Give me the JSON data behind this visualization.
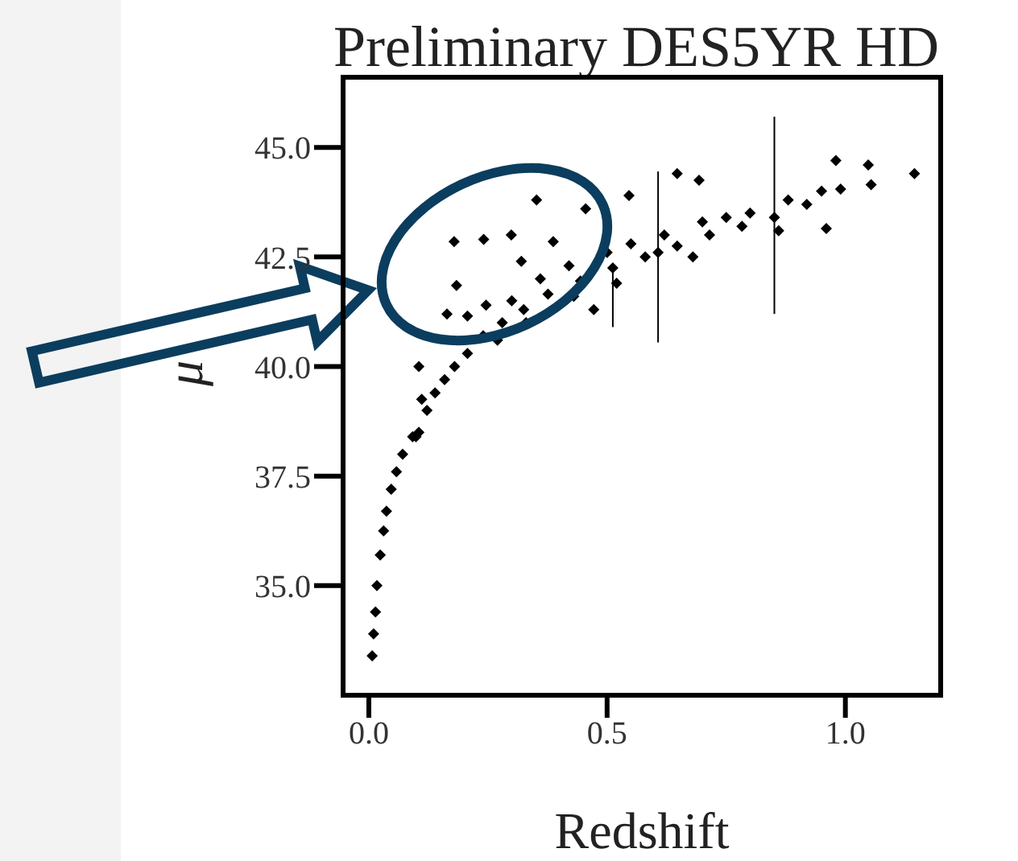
{
  "chart_data": {
    "type": "scatter",
    "title": "Preliminary DES5YR HD",
    "xlabel": "Redshift",
    "ylabel": "μ",
    "xlim": [
      -0.054,
      1.2
    ],
    "ylim": [
      32.5,
      46.6
    ],
    "xticks": [
      {
        "value": 0,
        "label": "0.0"
      },
      {
        "value": 0.5,
        "label": "0.5"
      },
      {
        "value": 1,
        "label": "1.0"
      }
    ],
    "yticks": [
      {
        "value": 35,
        "label": "35.0"
      },
      {
        "value": 37.5,
        "label": "37.5"
      },
      {
        "value": 40,
        "label": "40.0"
      },
      {
        "value": 42.5,
        "label": "42.5"
      },
      {
        "value": 45,
        "label": "45.0"
      }
    ],
    "grid": false,
    "legend": false,
    "marker": "diamond",
    "series": [
      {
        "color": "#000000",
        "x": [
          0.007,
          0.01,
          0.014,
          0.017,
          0.024,
          0.031,
          0.037,
          0.047,
          0.058,
          0.071,
          0.092,
          0.105,
          0.122,
          0.139,
          0.159,
          0.18,
          0.207,
          0.24,
          0.28,
          0.325,
          0.376,
          0.444,
          0.512,
          0.58,
          0.647,
          0.715,
          0.783,
          0.851,
          0.919,
          0.99,
          1.054,
          1.145,
          0.352,
          0.179,
          0.241,
          0.299,
          0.184,
          0.164,
          0.207,
          0.246,
          0.32,
          0.387,
          0.455,
          0.647,
          0.693,
          0.546,
          0.472,
          0.96,
          0.98,
          1.048,
          0.105,
          0.111,
          0.099,
          0.607,
          0.3,
          0.36,
          0.42,
          0.5,
          0.55,
          0.62,
          0.7,
          0.75,
          0.8,
          0.88,
          0.95,
          0.27,
          0.33,
          0.43,
          0.52,
          0.68,
          0.86
        ],
        "values": [
          33.4,
          33.9,
          34.4,
          35.0,
          35.7,
          36.25,
          36.7,
          37.2,
          37.6,
          38.0,
          38.4,
          38.5,
          39.0,
          39.4,
          39.7,
          40.0,
          40.3,
          40.7,
          41.0,
          41.3,
          41.65,
          41.95,
          42.25,
          42.5,
          42.75,
          43.0,
          43.2,
          43.4,
          43.7,
          44.05,
          44.15,
          44.4,
          43.8,
          42.85,
          42.9,
          43.0,
          41.85,
          41.2,
          41.15,
          41.4,
          42.4,
          42.85,
          43.6,
          44.4,
          44.25,
          43.9,
          41.3,
          43.15,
          44.7,
          44.6,
          40.0,
          39.25,
          38.4,
          42.6,
          41.5,
          42.0,
          42.3,
          42.6,
          42.8,
          43.0,
          43.3,
          43.4,
          43.5,
          43.8,
          44.0,
          40.6,
          41.0,
          41.6,
          41.9,
          42.5,
          43.1
        ],
        "errors": [
          null,
          null,
          null,
          null,
          null,
          null,
          null,
          null,
          null,
          null,
          null,
          null,
          null,
          null,
          null,
          null,
          null,
          null,
          null,
          null,
          null,
          null,
          [
            40.9,
            42.3
          ],
          null,
          null,
          null,
          null,
          [
            41.2,
            45.7
          ],
          null,
          null,
          null,
          null,
          null,
          null,
          null,
          null,
          null,
          null,
          null,
          null,
          null,
          null,
          null,
          null,
          null,
          null,
          null,
          null,
          null,
          null,
          null,
          null,
          null,
          [
            40.55,
            44.45
          ],
          null,
          null,
          null,
          null,
          null,
          null,
          null,
          null,
          null,
          null,
          null,
          null,
          null,
          null,
          null,
          null,
          null
        ]
      }
    ]
  }
}
